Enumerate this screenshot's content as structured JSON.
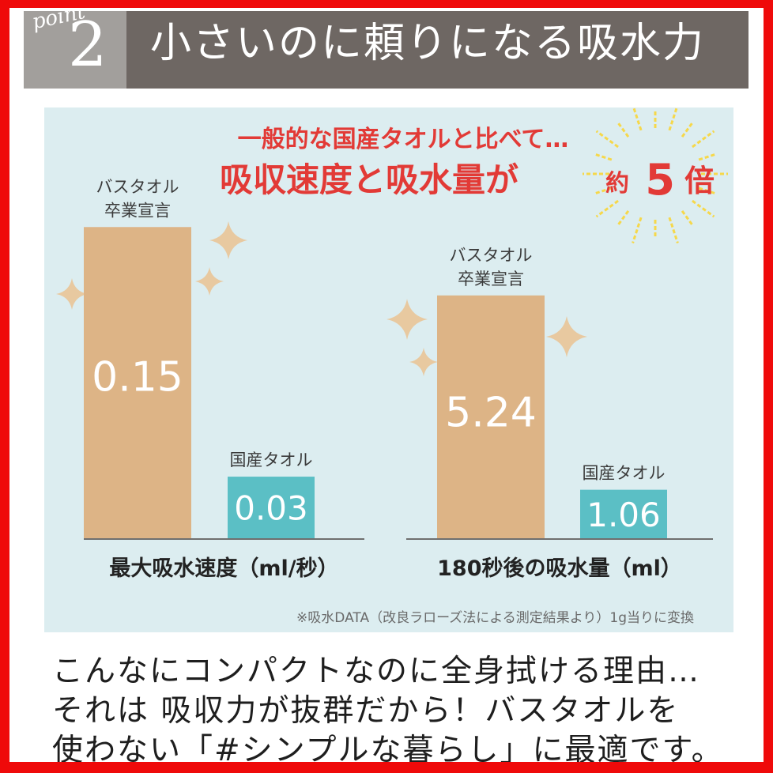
{
  "header": {
    "point_label": "point",
    "point_number": "2",
    "title": "小さいのに頼りになる吸水力"
  },
  "headline": {
    "line1": "一般的な国産タオルと比べて…",
    "line2_main": "吸収速度と吸水量が",
    "line2_prefix": "約",
    "line2_number": "5",
    "line2_suffix": "倍"
  },
  "colors": {
    "frame": "#ef0a0a",
    "header_band": "#6e6763",
    "point_box": "#a29f9c",
    "panel": "#dcedf0",
    "bar_primary": "#ddb486",
    "bar_secondary": "#5bbfc5",
    "headline_red": "#e23a36",
    "sparkle": "#e8c9a0",
    "burst": "#f6d84a"
  },
  "chart_data": [
    {
      "type": "bar",
      "categories": [
        "バスタオル\n卒業宣言",
        "国産タオル"
      ],
      "values": [
        0.15,
        0.03
      ],
      "value_labels": [
        "0.15",
        "0.03"
      ],
      "xlabel": "最大吸水速度（ml/秒）",
      "ylim": [
        0,
        0.19
      ]
    },
    {
      "type": "bar",
      "categories": [
        "バスタオル\n卒業宣言",
        "国産タオル"
      ],
      "values": [
        5.24,
        1.06
      ],
      "value_labels": [
        "5.24",
        "1.06"
      ],
      "xlabel": "180秒後の吸水量（ml）",
      "ylim": [
        0,
        8.5
      ]
    }
  ],
  "footnote": "※吸水DATA（改良ラローズ法による測定結果より）1g当りに変換",
  "caption": {
    "line1": "こんなにコンパクトなのに全身拭ける理由…",
    "line2": "それは 吸収力が抜群だから！バスタオルを",
    "line3": "使わない「#シンプルな暮らし」に最適です。"
  }
}
